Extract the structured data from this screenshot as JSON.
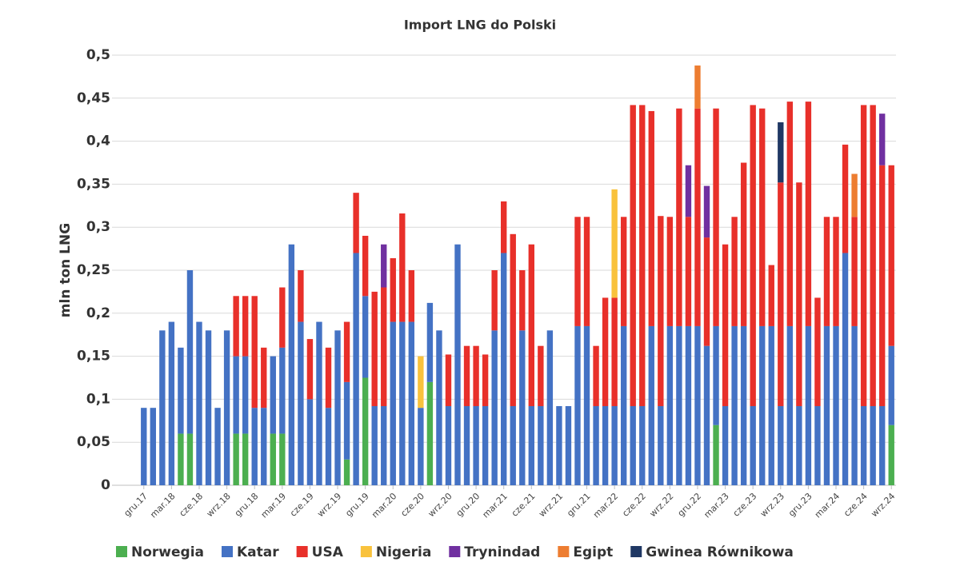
{
  "chart_data": {
    "type": "stacked_bar",
    "title": "Import LNG do Polski",
    "y_label": "mln ton LNG",
    "categories": [
      "gru.17",
      null,
      null,
      "mar.18",
      null,
      null,
      "cze.18",
      null,
      null,
      "wrz.18",
      null,
      null,
      "gru.18",
      null,
      null,
      "mar.19",
      null,
      null,
      "cze.19",
      null,
      null,
      "wrz.19",
      null,
      null,
      "gru.19",
      null,
      null,
      "mar.20",
      null,
      null,
      "cze.20",
      null,
      null,
      "wrz.20",
      null,
      null,
      "gru.20",
      null,
      null,
      "mar.21",
      null,
      null,
      "cze.21",
      null,
      null,
      "wrz.21",
      null,
      null,
      "gru.21",
      null,
      null,
      "mar.22",
      null,
      null,
      "cze.22",
      null,
      null,
      "wrz.22",
      null,
      null,
      "gru.22",
      null,
      null,
      "mar.23",
      null,
      null,
      "cze.23",
      null,
      null,
      "wrz.23",
      null,
      null,
      "gru.23",
      null,
      null,
      "mar.24",
      null,
      null,
      "cze.24",
      null,
      null,
      "wrz.24"
    ],
    "series": [
      {
        "name": "Norwegia",
        "color": "#4caf50",
        "values": [
          null,
          null,
          null,
          null,
          0.06,
          0.06,
          null,
          null,
          null,
          null,
          0.06,
          0.06,
          null,
          null,
          0.06,
          0.06,
          null,
          null,
          null,
          null,
          null,
          null,
          0.03,
          null,
          0.125,
          null,
          null,
          null,
          null,
          null,
          null,
          0.12,
          null,
          null,
          null,
          null,
          null,
          null,
          null,
          null,
          null,
          null,
          null,
          null,
          null,
          null,
          null,
          null,
          null,
          null,
          null,
          null,
          null,
          null,
          null,
          null,
          null,
          null,
          null,
          null,
          null,
          null,
          0.07,
          null,
          null,
          null,
          null,
          null,
          null,
          null,
          null,
          null,
          null,
          null,
          null,
          null,
          null,
          null,
          null,
          null,
          null,
          0.07
        ]
      },
      {
        "name": "Katar",
        "color": "#4472c4",
        "values": [
          0.09,
          0.09,
          0.18,
          0.19,
          0.1,
          0.19,
          0.19,
          0.18,
          0.09,
          0.18,
          0.09,
          0.09,
          0.09,
          0.09,
          0.09,
          0.1,
          0.28,
          0.19,
          0.1,
          0.19,
          0.09,
          0.18,
          0.09,
          0.27,
          0.095,
          0.092,
          0.092,
          0.19,
          0.19,
          0.19,
          0.09,
          0.092,
          0.18,
          0.092,
          0.28,
          0.092,
          0.092,
          0.092,
          0.18,
          0.27,
          0.092,
          0.18,
          0.092,
          0.092,
          0.18,
          0.092,
          0.092,
          0.185,
          0.185,
          0.092,
          0.092,
          0.092,
          0.185,
          0.092,
          0.092,
          0.185,
          0.092,
          0.185,
          0.185,
          0.185,
          0.185,
          0.162,
          0.115,
          0.092,
          0.185,
          0.185,
          0.092,
          0.185,
          0.185,
          0.092,
          0.185,
          0.092,
          0.185,
          0.092,
          0.185,
          0.185,
          0.27,
          0.185,
          0.092,
          0.092,
          0.092,
          0.092
        ]
      },
      {
        "name": "USA",
        "color": "#e8302a",
        "values": [
          null,
          null,
          null,
          null,
          null,
          null,
          null,
          null,
          null,
          null,
          0.07,
          0.07,
          0.13,
          0.07,
          null,
          0.07,
          null,
          0.06,
          0.07,
          null,
          0.07,
          null,
          0.07,
          0.07,
          0.07,
          0.133,
          0.138,
          0.074,
          0.126,
          0.06,
          null,
          null,
          null,
          0.06,
          null,
          0.07,
          0.07,
          0.06,
          0.07,
          0.06,
          0.2,
          0.07,
          0.188,
          0.07,
          null,
          null,
          null,
          0.127,
          0.127,
          0.07,
          0.126,
          0.126,
          0.127,
          0.35,
          0.35,
          0.25,
          0.221,
          0.127,
          0.253,
          0.127,
          0.253,
          0.126,
          0.253,
          0.188,
          0.127,
          0.19,
          0.35,
          0.253,
          0.071,
          0.26,
          0.261,
          0.26,
          0.261,
          0.126,
          0.127,
          0.127,
          0.126,
          0.127,
          0.35,
          0.35,
          0.28,
          0.21
        ]
      },
      {
        "name": "Nigeria",
        "color": "#f9c23c",
        "values": [
          null,
          null,
          null,
          null,
          null,
          null,
          null,
          null,
          null,
          null,
          null,
          null,
          null,
          null,
          null,
          null,
          null,
          null,
          null,
          null,
          null,
          null,
          null,
          null,
          null,
          null,
          null,
          null,
          null,
          null,
          0.06,
          null,
          null,
          null,
          null,
          null,
          null,
          null,
          null,
          null,
          null,
          null,
          null,
          null,
          null,
          null,
          null,
          null,
          null,
          null,
          null,
          0.126,
          null,
          null,
          null,
          null,
          null,
          null,
          null,
          null,
          null,
          null,
          null,
          null,
          null,
          null,
          null,
          null,
          null,
          null,
          null,
          null,
          null,
          null,
          null,
          null,
          null,
          null,
          null,
          null,
          null,
          null
        ]
      },
      {
        "name": "Trynindad",
        "color": "#7030a0",
        "values": [
          null,
          null,
          null,
          null,
          null,
          null,
          null,
          null,
          null,
          null,
          null,
          null,
          null,
          null,
          null,
          null,
          null,
          null,
          null,
          null,
          null,
          null,
          null,
          null,
          null,
          null,
          0.05,
          null,
          null,
          null,
          null,
          null,
          null,
          null,
          null,
          null,
          null,
          null,
          null,
          null,
          null,
          null,
          null,
          null,
          null,
          null,
          null,
          null,
          null,
          null,
          null,
          null,
          null,
          null,
          null,
          null,
          null,
          null,
          null,
          0.06,
          null,
          0.06,
          null,
          null,
          null,
          null,
          null,
          null,
          null,
          null,
          null,
          null,
          null,
          null,
          null,
          null,
          null,
          null,
          null,
          null,
          0.06,
          null
        ]
      },
      {
        "name": "Egipt",
        "color": "#ed7d31",
        "values": [
          null,
          null,
          null,
          null,
          null,
          null,
          null,
          null,
          null,
          null,
          null,
          null,
          null,
          null,
          null,
          null,
          null,
          null,
          null,
          null,
          null,
          null,
          null,
          null,
          null,
          null,
          null,
          null,
          null,
          null,
          null,
          null,
          null,
          null,
          null,
          null,
          null,
          null,
          null,
          null,
          null,
          null,
          null,
          null,
          null,
          null,
          null,
          null,
          null,
          null,
          null,
          null,
          null,
          null,
          null,
          null,
          null,
          null,
          null,
          null,
          0.05,
          null,
          null,
          null,
          null,
          null,
          null,
          null,
          null,
          null,
          null,
          null,
          null,
          null,
          null,
          null,
          null,
          0.05,
          null,
          null,
          null,
          null
        ]
      },
      {
        "name": "Gwinea Równikowa",
        "color": "#1f3864",
        "values": [
          null,
          null,
          null,
          null,
          null,
          null,
          null,
          null,
          null,
          null,
          null,
          null,
          null,
          null,
          null,
          null,
          null,
          null,
          null,
          null,
          null,
          null,
          null,
          null,
          null,
          null,
          null,
          null,
          null,
          null,
          null,
          null,
          null,
          null,
          null,
          null,
          null,
          null,
          null,
          null,
          null,
          null,
          null,
          null,
          null,
          null,
          null,
          null,
          null,
          null,
          null,
          null,
          null,
          null,
          null,
          null,
          null,
          null,
          null,
          null,
          null,
          null,
          null,
          null,
          null,
          null,
          null,
          null,
          null,
          0.07,
          null,
          null,
          null,
          null,
          null,
          null,
          null,
          null,
          null,
          null,
          null,
          null
        ]
      }
    ],
    "ylim": [
      0,
      0.5
    ],
    "yticks": [
      0,
      {
        "value": 0.05,
        "label": "0,05"
      },
      {
        "value": 0.1,
        "label": "0,1"
      },
      {
        "value": 0.15,
        "label": "0,15"
      },
      {
        "value": 0.2,
        "label": "0,2"
      },
      {
        "value": 0.25,
        "label": "0,25"
      },
      {
        "value": 0.3,
        "label": "0,3"
      },
      {
        "value": 0.35,
        "label": "0,35"
      },
      {
        "value": 0.4,
        "label": "0,4"
      },
      {
        "value": 0.45,
        "label": "0,45"
      },
      {
        "value": 0.5,
        "label": "0,5"
      }
    ],
    "grid": true
  }
}
